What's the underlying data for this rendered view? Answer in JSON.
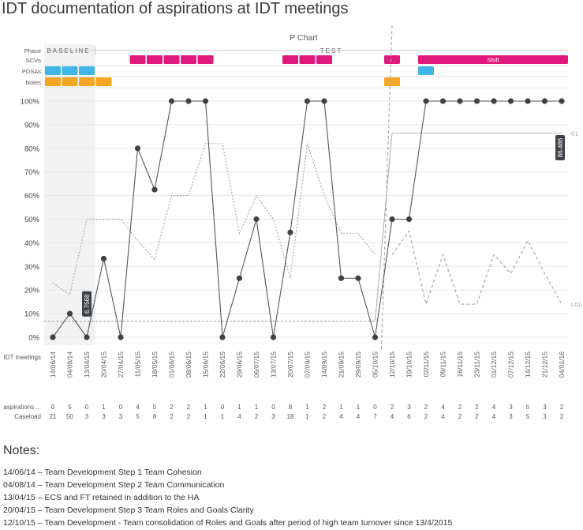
{
  "title": "IDT documentation of aspirations at IDT meetings",
  "notes_heading": "Notes:",
  "notes": [
    "14/06/14 – Team Development Step 1 Team Cohesion",
    "04/08/14 – Team Development Step 2 Team Communication",
    "13/04/15 – ECS and FT retained in addition to the HA",
    "20/04/15 – Team Development Step 3 Team Roles and Goals Clarity",
    "12/10/15 – Team Development - Team consolidation of Roles and Goals after period of high team turnover since 13/4/2015"
  ],
  "chart_data": {
    "type": "line",
    "title": "P Chart",
    "xlabel": "IDT meetings",
    "ylabel": "",
    "ylim": [
      0,
      100
    ],
    "yticks": [
      "0%",
      "10%",
      "20%",
      "30%",
      "40%",
      "50%",
      "60%",
      "70%",
      "80%",
      "90%",
      "100%"
    ],
    "categories": [
      "14/06/14",
      "04/08/14",
      "13/04/15",
      "20/04/15",
      "27/04/15",
      "11/05/15",
      "18/05/15",
      "01/06/15",
      "08/06/15",
      "15/06/15",
      "22/06/15",
      "29/06/15",
      "06/07/15",
      "13/07/15",
      "20/07/15",
      "07/09/15",
      "14/09/15",
      "21/09/15",
      "29/09/15",
      "05/10/15",
      "12/10/15",
      "19/10/15",
      "02/11/15",
      "09/11/15",
      "16/11/15",
      "23/11/15",
      "01/12/15",
      "07/12/15",
      "14/12/15",
      "21/12/15",
      "04/01/16"
    ],
    "series": [
      {
        "name": "Percentage",
        "values": [
          0,
          10,
          0,
          33.3,
          0,
          80,
          62.5,
          100,
          100,
          100,
          0,
          25,
          50,
          0,
          44.4,
          100,
          100,
          25,
          25,
          0,
          50,
          50,
          100,
          100,
          100,
          100,
          100,
          100,
          100,
          100,
          100
        ]
      }
    ],
    "centre_line_baseline": 6.7568,
    "centre_line_test": 86.486,
    "centre_line_label": "CL",
    "lower_limit_label": "LCL",
    "cl_value_labels": [
      "6.7568",
      "86.486"
    ],
    "ucl_values": [
      23,
      18,
      50,
      50,
      50,
      41,
      33,
      60,
      60,
      82,
      82,
      44,
      60,
      50,
      25,
      82,
      60,
      44,
      44,
      35,
      null,
      null,
      null,
      null,
      null,
      null,
      null,
      null,
      null,
      null,
      null
    ],
    "lcl_values": [
      null,
      null,
      null,
      null,
      null,
      null,
      null,
      null,
      null,
      null,
      null,
      null,
      null,
      null,
      null,
      null,
      null,
      null,
      null,
      null,
      35,
      45,
      14,
      35,
      14,
      14,
      35,
      27,
      41,
      27,
      14
    ],
    "phases": [
      {
        "label": "BASELINE",
        "start": 0,
        "end": 2
      },
      {
        "label": "TEST",
        "start": 3,
        "end": 30
      }
    ],
    "annotation_rows": [
      {
        "label": "Phase"
      },
      {
        "label": "SCVs"
      },
      {
        "label": "PDSAs"
      },
      {
        "label": "Notes"
      }
    ],
    "scv_markers": [
      5,
      6,
      7,
      8,
      9,
      14,
      15,
      16,
      20
    ],
    "shift_label": "Shift",
    "shift_range": [
      22,
      30
    ],
    "pdsa_markers": [
      0,
      1,
      2,
      22
    ],
    "note_markers": [
      0,
      1,
      2,
      3,
      20
    ],
    "table_rows": [
      {
        "label": "aspirations ...",
        "values": [
          "0",
          "5",
          "0",
          "1",
          "0",
          "4",
          "5",
          "2",
          "2",
          "1",
          "0",
          "1",
          "1",
          "0",
          "8",
          "1",
          "2",
          "1",
          "1",
          "0",
          "2",
          "3",
          "2",
          "4",
          "2",
          "2",
          "4",
          "3",
          "5",
          "3",
          "2"
        ]
      },
      {
        "label": "Caseload",
        "values": [
          "21",
          "50",
          "3",
          "3",
          "3",
          "5",
          "8",
          "2",
          "2",
          "1",
          "1",
          "4",
          "2",
          "3",
          "18",
          "1",
          "2",
          "4",
          "4",
          "7",
          "4",
          "6",
          "2",
          "4",
          "2",
          "2",
          "4",
          "3",
          "5",
          "3",
          "2"
        ]
      }
    ],
    "colors": {
      "data_line": "#555555",
      "point": "#3d4247",
      "scv": "#e0197d",
      "pdsa": "#3fb5e8",
      "note": "#f5a623",
      "limit": "#aaaaaa",
      "baseline_shade": "#f2f2f2",
      "tooltip": "#3d4247"
    }
  }
}
